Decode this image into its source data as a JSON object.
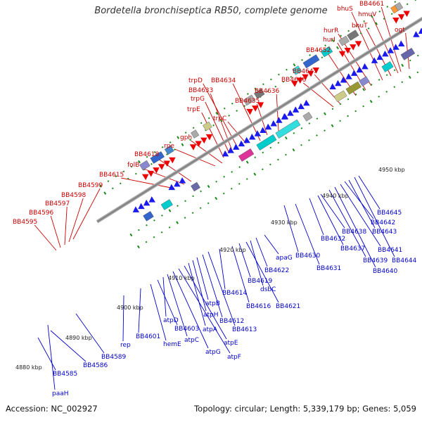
{
  "title": "Bordetella bronchiseptica RB50, complete genome",
  "footer": {
    "accession": "Accession: NC_002927",
    "summary": "Topology: circular; Length: 5,339,179 bp; Genes: 5,059"
  },
  "colors": {
    "top_label": "#cc0000",
    "bottom_label": "#0000cc",
    "top_gene": "#ee0000",
    "bottom_gene": "#1a1aee",
    "backbone": "#999999",
    "tick": "#1a8a1a"
  },
  "kbp_ticks": [
    "4880 kbp",
    "4890 kbp",
    "4900 kbp",
    "4910 kbp",
    "4920 kbp",
    "4930 kbp",
    "4940 kbp",
    "4950 kbp"
  ],
  "top_labels": [
    "BB4595",
    "BB4596",
    "BB4597",
    "BB4598",
    "BB4599",
    "BB4615",
    "folB",
    "BB4618",
    "rpe",
    "gph",
    "trpE",
    "trpG",
    "BB4633",
    "trpD",
    "trpC",
    "BB4634",
    "BB4635",
    "BB4636",
    "BB4646",
    "BB4647",
    "BB4652",
    "hurI",
    "hurR",
    "bhuS",
    "bhuT",
    "hmuV",
    "BB4661",
    "ogt"
  ],
  "bottom_labels": [
    "paaH",
    "BB4585",
    "BB4586",
    "BB4589",
    "rep",
    "BB4601",
    "hemE",
    "BB4603",
    "atpD",
    "atpC",
    "atpG",
    "atpF",
    "atpE",
    "atpA",
    "atpH",
    "atpB",
    "BB4612",
    "BB4613",
    "BB4614",
    "BB4616",
    "BB4619",
    "BB4621",
    "dsbC",
    "BB4622",
    "apaG",
    "BB4630",
    "BB4631",
    "BB4632",
    "BB4637",
    "BB4638",
    "BB4639",
    "BB4640",
    "BB4641",
    "BB4642",
    "BB4643",
    "BB4644",
    "BB4645"
  ]
}
